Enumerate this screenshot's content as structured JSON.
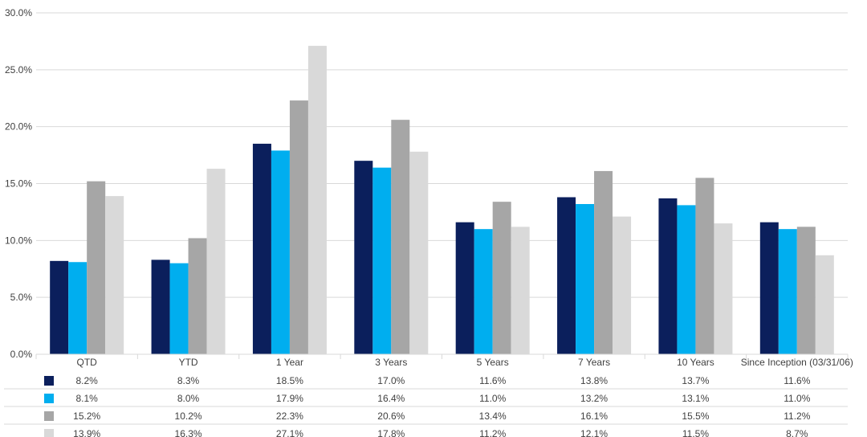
{
  "chart_data": {
    "type": "bar",
    "categories": [
      "QTD",
      "YTD",
      "1 Year",
      "3 Years",
      "5 Years",
      "7 Years",
      "10 Years",
      "Since Inception (03/31/06)"
    ],
    "series": [
      {
        "color": "#0b1f5c",
        "values": [
          8.2,
          8.3,
          18.5,
          17.0,
          11.6,
          13.8,
          13.7,
          11.6
        ],
        "labels": [
          "8.2%",
          "8.3%",
          "18.5%",
          "17.0%",
          "11.6%",
          "13.8%",
          "13.7%",
          "11.6%"
        ]
      },
      {
        "color": "#00aeef",
        "values": [
          8.1,
          8.0,
          17.9,
          16.4,
          11.0,
          13.2,
          13.1,
          11.0
        ],
        "labels": [
          "8.1%",
          "8.0%",
          "17.9%",
          "16.4%",
          "11.0%",
          "13.2%",
          "13.1%",
          "11.0%"
        ]
      },
      {
        "color": "#a6a6a6",
        "values": [
          15.2,
          10.2,
          22.3,
          20.6,
          13.4,
          16.1,
          15.5,
          11.2
        ],
        "labels": [
          "15.2%",
          "10.2%",
          "22.3%",
          "20.6%",
          "13.4%",
          "16.1%",
          "15.5%",
          "11.2%"
        ]
      },
      {
        "color": "#d9d9d9",
        "values": [
          13.9,
          16.3,
          27.1,
          17.8,
          11.2,
          12.1,
          11.5,
          8.7
        ],
        "labels": [
          "13.9%",
          "16.3%",
          "27.1%",
          "17.8%",
          "11.2%",
          "12.1%",
          "11.5%",
          "8.7%"
        ]
      }
    ],
    "yticks": [
      "0.0%",
      "5.0%",
      "10.0%",
      "15.0%",
      "20.0%",
      "25.0%",
      "30.0%"
    ],
    "ylim": [
      0,
      30
    ],
    "grid": true,
    "legend": "data-table-below"
  }
}
